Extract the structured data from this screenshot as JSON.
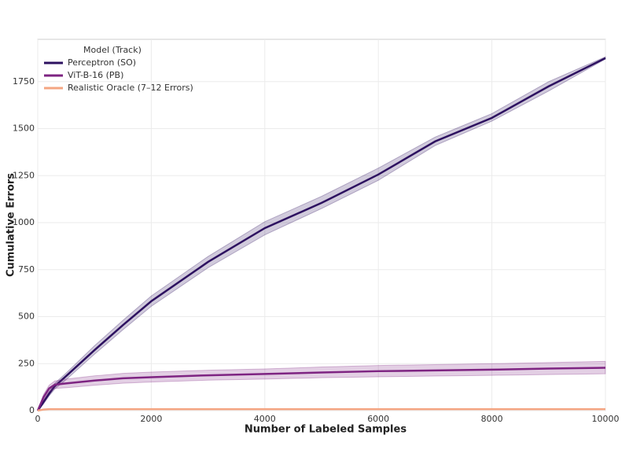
{
  "chart_data": {
    "type": "line",
    "x_label": "Number of Labeled Samples",
    "y_label": "Cumulative Errors",
    "legend_title": "Model (Track)",
    "legend": "upper left",
    "grid": true,
    "xlim": [
      0,
      10000
    ],
    "xticks": [
      0,
      2000,
      4000,
      6000,
      8000,
      10000
    ],
    "ylim": [
      0,
      1975
    ],
    "yticks": [
      0,
      250,
      500,
      750,
      1000,
      1250,
      1500,
      1750
    ],
    "x": [
      0,
      100,
      200,
      300,
      500,
      1000,
      1500,
      2000,
      3000,
      4000,
      5000,
      6000,
      7000,
      8000,
      9000,
      10000
    ],
    "series": [
      {
        "name": "Perceptron (SO)",
        "color": "#2d1160",
        "values": [
          0,
          45,
          90,
          130,
          184,
          322,
          455,
          582,
          791,
          971,
          1105,
          1256,
          1432,
          1557,
          1725,
          1875
        ],
        "lower": [
          0,
          35,
          78,
          115,
          165,
          300,
          430,
          555,
          760,
          935,
          1075,
          1225,
          1410,
          1540,
          1700,
          1870
        ],
        "upper": [
          0,
          55,
          102,
          145,
          200,
          345,
          480,
          610,
          820,
          1005,
          1140,
          1290,
          1455,
          1580,
          1750,
          1882
        ]
      },
      {
        "name": "ViT-B-16 (PB)",
        "color": "#7e2482",
        "values": [
          0,
          70,
          118,
          138,
          145,
          160,
          172,
          178,
          188,
          195,
          203,
          210,
          214,
          218,
          224,
          228
        ],
        "lower": [
          0,
          55,
          100,
          118,
          122,
          135,
          146,
          152,
          162,
          168,
          175,
          180,
          184,
          188,
          192,
          196
        ],
        "upper": [
          0,
          85,
          135,
          158,
          168,
          185,
          198,
          205,
          215,
          222,
          232,
          240,
          245,
          250,
          256,
          262
        ]
      },
      {
        "name": "Realistic Oracle (7–12 Errors)",
        "color": "#f4a582",
        "values": [
          0,
          6,
          8,
          8,
          8,
          8,
          8,
          8,
          8,
          8,
          8,
          8,
          8,
          8,
          8,
          8
        ]
      }
    ]
  }
}
